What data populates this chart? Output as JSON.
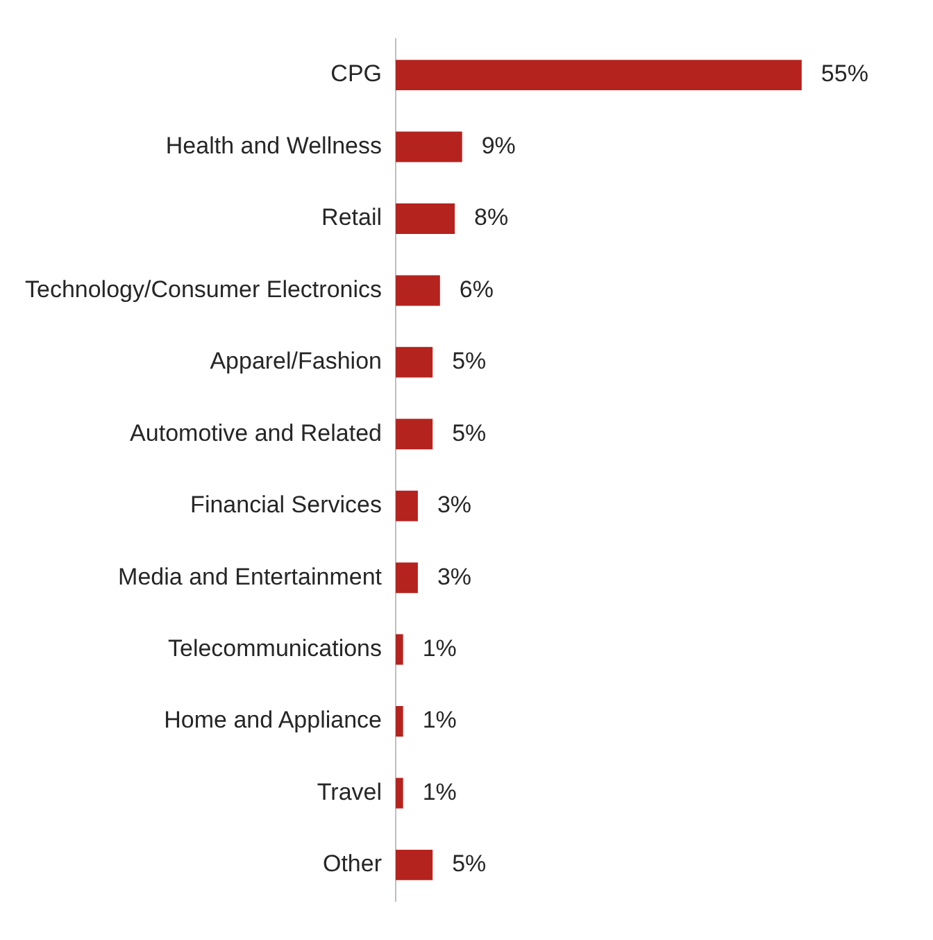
{
  "chart_data": {
    "type": "bar",
    "orientation": "horizontal",
    "categories": [
      "CPG",
      "Health and Wellness",
      "Retail",
      "Technology/Consumer Electronics",
      "Apparel/Fashion",
      "Automotive and Related",
      "Financial Services",
      "Media and Entertainment",
      "Telecommunications",
      "Home and Appliance",
      "Travel",
      "Other"
    ],
    "values": [
      55,
      9,
      8,
      6,
      5,
      5,
      3,
      3,
      1,
      1,
      1,
      5
    ],
    "value_labels": [
      "55%",
      "9%",
      "8%",
      "6%",
      "5%",
      "5%",
      "3%",
      "3%",
      "1%",
      "1%",
      "1%",
      "5%"
    ],
    "color": "#b5231f",
    "grid": false,
    "legend": false,
    "tick_labels": "y"
  }
}
